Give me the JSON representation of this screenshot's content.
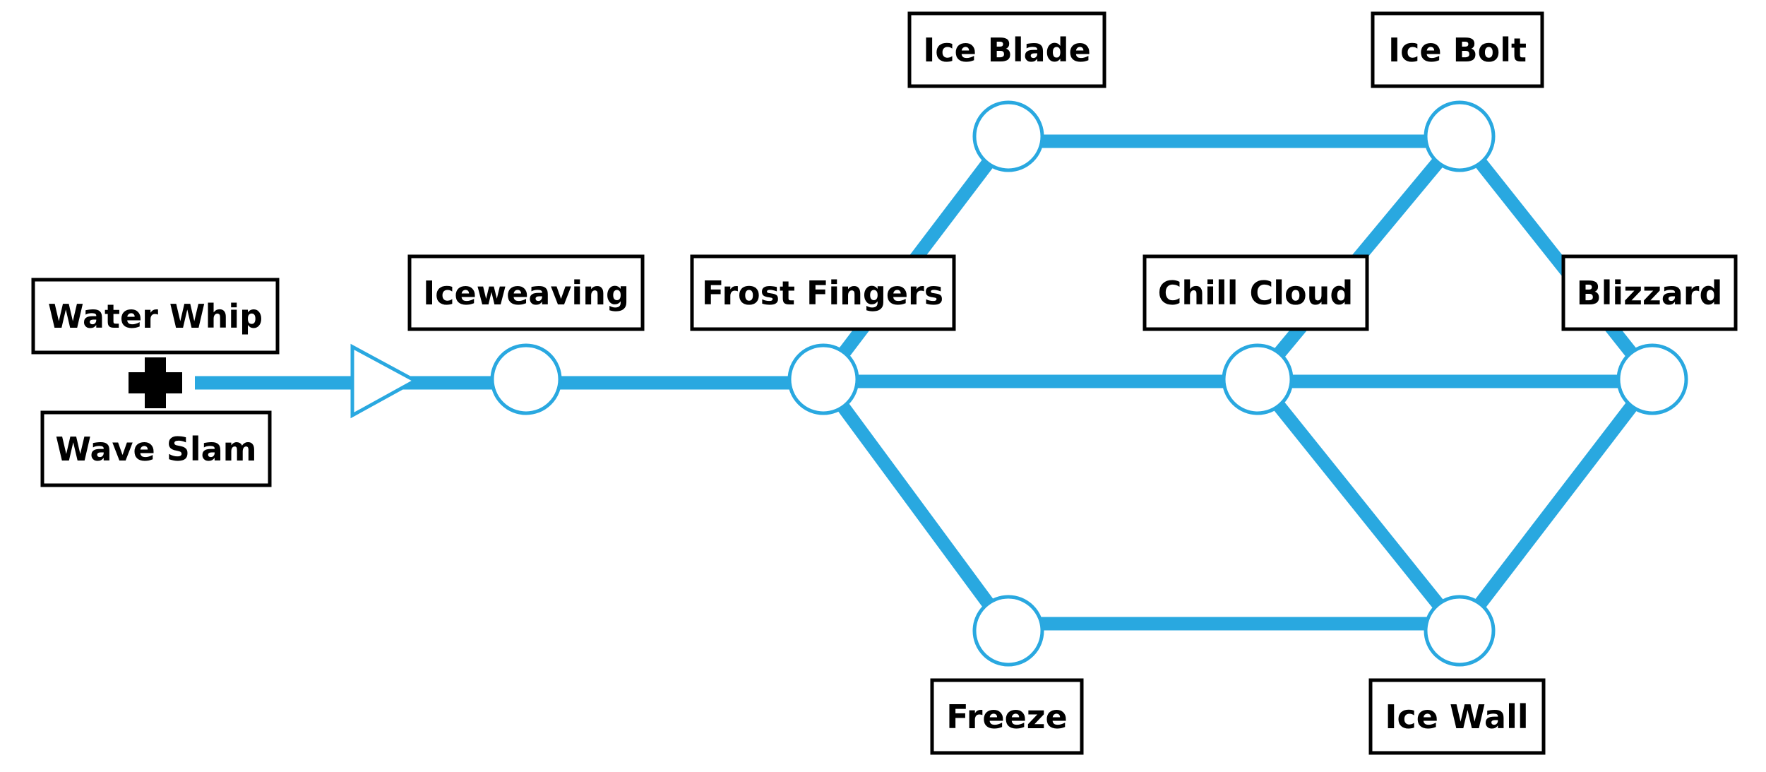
{
  "colors": {
    "line": "#29a8e0",
    "box_border": "#000000",
    "text": "#000000",
    "background": "#ffffff",
    "plus": "#000000"
  },
  "combine_symbol": "plus-icon",
  "inputs": [
    {
      "id": "water-whip",
      "label": "Water Whip"
    },
    {
      "id": "wave-slam",
      "label": "Wave Slam"
    }
  ],
  "nodes": [
    {
      "id": "iceweaving",
      "label": "Iceweaving"
    },
    {
      "id": "frost-fingers",
      "label": "Frost Fingers"
    },
    {
      "id": "ice-blade",
      "label": "Ice Blade"
    },
    {
      "id": "freeze",
      "label": "Freeze"
    },
    {
      "id": "chill-cloud",
      "label": "Chill Cloud"
    },
    {
      "id": "ice-bolt",
      "label": "Ice Bolt"
    },
    {
      "id": "ice-wall",
      "label": "Ice Wall"
    },
    {
      "id": "blizzard",
      "label": "Blizzard"
    }
  ],
  "edges": [
    {
      "from": "inputs",
      "to": "iceweaving"
    },
    {
      "from": "iceweaving",
      "to": "frost-fingers"
    },
    {
      "from": "frost-fingers",
      "to": "ice-blade"
    },
    {
      "from": "frost-fingers",
      "to": "chill-cloud"
    },
    {
      "from": "frost-fingers",
      "to": "freeze"
    },
    {
      "from": "ice-blade",
      "to": "ice-bolt"
    },
    {
      "from": "chill-cloud",
      "to": "ice-bolt"
    },
    {
      "from": "chill-cloud",
      "to": "blizzard"
    },
    {
      "from": "chill-cloud",
      "to": "ice-wall"
    },
    {
      "from": "freeze",
      "to": "ice-wall"
    },
    {
      "from": "ice-bolt",
      "to": "blizzard"
    },
    {
      "from": "ice-wall",
      "to": "blizzard"
    }
  ]
}
